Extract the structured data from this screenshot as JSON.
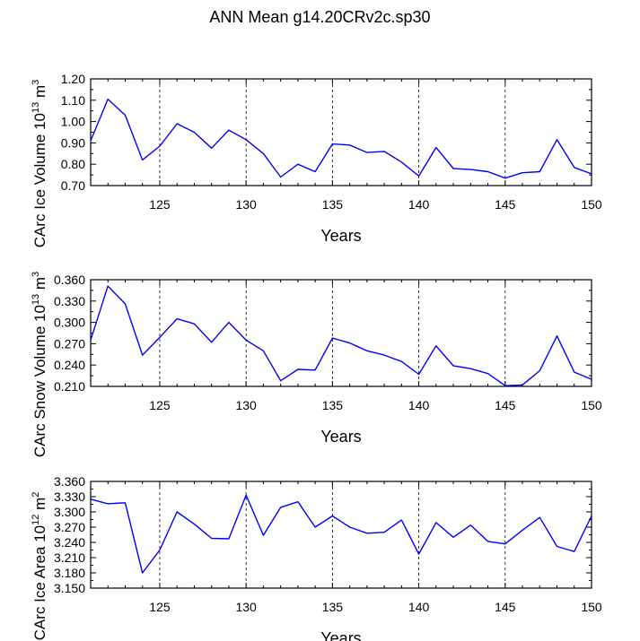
{
  "page_title": "ANN Mean g14.20CRv2c.sp30",
  "chart_data": [
    {
      "type": "line",
      "title": "",
      "xlabel": "Years",
      "ylabel_main": "CArc Ice Volume 10",
      "ylabel_exp": "13",
      "ylabel_unit": "m",
      "ylabel_unit_exp": "3",
      "xlim": [
        121,
        150
      ],
      "ylim": [
        0.7,
        1.2
      ],
      "yticks": [
        "0.70",
        "0.80",
        "0.90",
        "1.00",
        "1.10",
        "1.20"
      ],
      "xticks": [
        "125",
        "130",
        "135",
        "140",
        "145",
        "150"
      ],
      "grid_x": [
        125,
        130,
        135,
        140,
        145
      ],
      "line_color": "#0000ff",
      "x": [
        121,
        122,
        123,
        124,
        125,
        126,
        127,
        128,
        129,
        130,
        131,
        132,
        133,
        134,
        135,
        136,
        137,
        138,
        139,
        140,
        141,
        142,
        143,
        144,
        145,
        146,
        147,
        148,
        149,
        150
      ],
      "values": [
        0.91,
        1.105,
        1.03,
        0.82,
        0.885,
        0.99,
        0.95,
        0.875,
        0.96,
        0.915,
        0.85,
        0.74,
        0.8,
        0.765,
        0.895,
        0.89,
        0.855,
        0.86,
        0.81,
        0.745,
        0.878,
        0.78,
        0.775,
        0.765,
        0.735,
        0.76,
        0.765,
        0.915,
        0.785,
        0.755
      ]
    },
    {
      "type": "line",
      "title": "",
      "xlabel": "Years",
      "ylabel_main": "CArc Snow Volume 10",
      "ylabel_exp": "13",
      "ylabel_unit": "m",
      "ylabel_unit_exp": "3",
      "xlim": [
        121,
        150
      ],
      "ylim": [
        0.21,
        0.36
      ],
      "yticks": [
        "0.210",
        "0.240",
        "0.270",
        "0.300",
        "0.330",
        "0.360"
      ],
      "xticks": [
        "125",
        "130",
        "135",
        "140",
        "145",
        "150"
      ],
      "grid_x": [
        125,
        130,
        135,
        140,
        145
      ],
      "line_color": "#0000ff",
      "x": [
        121,
        122,
        123,
        124,
        125,
        126,
        127,
        128,
        129,
        130,
        131,
        132,
        133,
        134,
        135,
        136,
        137,
        138,
        139,
        140,
        141,
        142,
        143,
        144,
        145,
        146,
        147,
        148,
        149,
        150
      ],
      "values": [
        0.275,
        0.351,
        0.326,
        0.254,
        0.279,
        0.305,
        0.298,
        0.272,
        0.3,
        0.275,
        0.26,
        0.218,
        0.234,
        0.233,
        0.278,
        0.271,
        0.26,
        0.254,
        0.245,
        0.227,
        0.267,
        0.239,
        0.235,
        0.228,
        0.211,
        0.212,
        0.232,
        0.281,
        0.23,
        0.22
      ]
    },
    {
      "type": "line",
      "title": "",
      "xlabel": "Years",
      "ylabel_main": "CArc Ice Area 10",
      "ylabel_exp": "12",
      "ylabel_unit": "m",
      "ylabel_unit_exp": "2",
      "xlim": [
        121,
        150
      ],
      "ylim": [
        3.15,
        3.36
      ],
      "yticks": [
        "3.150",
        "3.180",
        "3.210",
        "3.240",
        "3.270",
        "3.300",
        "3.330",
        "3.360"
      ],
      "xticks": [
        "125",
        "130",
        "135",
        "140",
        "145",
        "150"
      ],
      "grid_x": [
        125,
        130,
        135,
        140,
        145
      ],
      "line_color": "#0000ff",
      "x": [
        121,
        122,
        123,
        124,
        125,
        126,
        127,
        128,
        129,
        130,
        131,
        132,
        133,
        134,
        135,
        136,
        137,
        138,
        139,
        140,
        141,
        142,
        143,
        144,
        145,
        146,
        147,
        148,
        149,
        150
      ],
      "values": [
        3.325,
        3.316,
        3.318,
        3.18,
        3.225,
        3.3,
        3.276,
        3.248,
        3.247,
        3.333,
        3.254,
        3.309,
        3.32,
        3.27,
        3.292,
        3.27,
        3.258,
        3.26,
        3.284,
        3.217,
        3.279,
        3.25,
        3.274,
        3.242,
        3.237,
        3.264,
        3.289,
        3.232,
        3.222,
        3.292
      ]
    }
  ]
}
